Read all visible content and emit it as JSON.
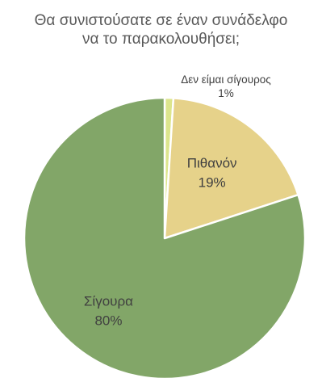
{
  "chart_data": {
    "type": "pie",
    "title_lines": [
      "Θα συνιστούσατε σε έναν συνάδελφο",
      "να το παρακολουθήσει;"
    ],
    "start_angle_deg": 0,
    "slices": [
      {
        "label": "Δεν είμαι σίγουρος",
        "value": 1,
        "value_label": "1%",
        "color": "#DCE58C"
      },
      {
        "label": "Πιθανόν",
        "value": 19,
        "value_label": "19%",
        "color": "#E6D28A"
      },
      {
        "label": "Σίγουρα",
        "value": 80,
        "value_label": "80%",
        "color": "#82A668"
      }
    ]
  }
}
